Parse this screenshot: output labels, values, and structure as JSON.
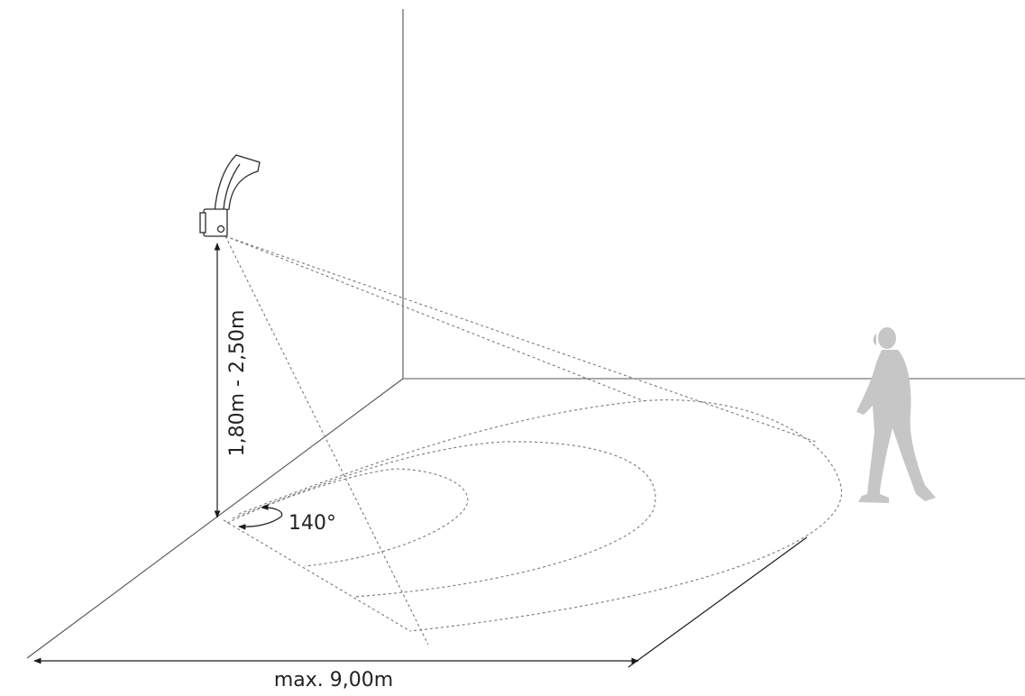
{
  "labels": {
    "height_range": "1,80m - 2,50m",
    "detection_angle": "140°",
    "max_range": "max. 9,00m"
  },
  "colors": {
    "line": "#555555",
    "dimension": "#1a1a1a",
    "dashed": "#7a7a7a",
    "figure": "#c6c6c6",
    "lamp_fill": "#ffffff"
  },
  "icons": {
    "lamp": "wall-mounted-sensor-lamp-icon",
    "person": "walking-person-icon"
  }
}
